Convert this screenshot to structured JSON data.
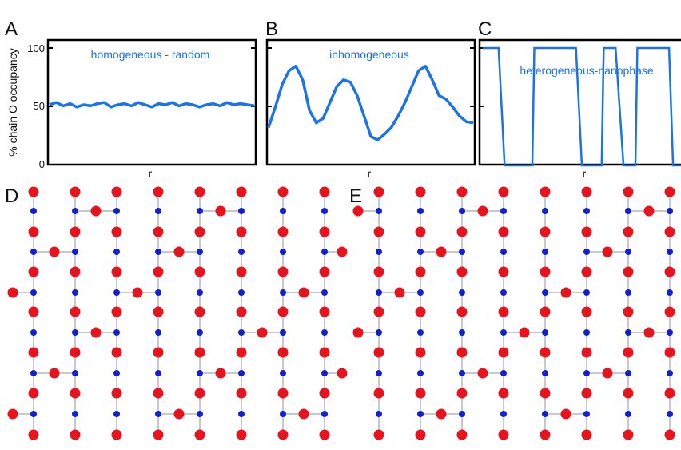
{
  "colors": {
    "curve": "#1a73e8",
    "title": "#1a73e8",
    "o_atom": "#e8141d",
    "cu_atom": "#1420d0",
    "bond": "#c8c8d0",
    "frame": "#000000",
    "watermark": "#eeeeee"
  },
  "panels": {
    "A": {
      "letter": "A",
      "title": "homogeneous - random",
      "xlabel": "r"
    },
    "B": {
      "letter": "B",
      "title": "inhomogeneous",
      "xlabel": "r"
    },
    "C": {
      "letter": "C",
      "title": "heterogeneous-nanophase",
      "xlabel": "r"
    },
    "D": {
      "letter": "D"
    },
    "E": {
      "letter": "E"
    }
  },
  "ylabel": "% chain O occupancy",
  "yticks": [
    "0",
    "50",
    "100"
  ],
  "chart_data": [
    {
      "type": "line",
      "title": "homogeneous - random",
      "xlabel": "r",
      "ylabel": "% chain O occupancy",
      "ylim": [
        0,
        100
      ],
      "x": [
        0,
        1,
        2,
        3,
        4,
        5,
        6,
        7,
        8,
        9,
        10,
        11,
        12,
        13,
        14,
        15,
        16,
        17,
        18,
        19,
        20,
        21,
        22,
        23,
        24,
        25,
        26,
        27,
        28,
        29,
        30
      ],
      "values": [
        50,
        52,
        49,
        51,
        48,
        50,
        49,
        51,
        52,
        48,
        50,
        51,
        49,
        52,
        50,
        48,
        51,
        50,
        52,
        49,
        51,
        50,
        48,
        50,
        51,
        49,
        52,
        50,
        51,
        50,
        49
      ]
    },
    {
      "type": "line",
      "title": "inhomogeneous",
      "xlabel": "r",
      "ylabel": "% chain O occupancy",
      "ylim": [
        0,
        100
      ],
      "x": [
        0,
        1,
        2,
        3,
        4,
        5,
        6,
        7,
        8,
        9,
        10,
        11,
        12,
        13,
        14,
        15,
        16,
        17,
        18,
        19,
        20,
        21,
        22,
        23,
        24,
        25,
        26,
        27,
        28,
        29,
        30
      ],
      "values": [
        30,
        48,
        68,
        80,
        84,
        72,
        45,
        34,
        38,
        52,
        66,
        72,
        70,
        58,
        40,
        22,
        19,
        24,
        30,
        40,
        52,
        66,
        80,
        84,
        72,
        58,
        55,
        48,
        40,
        35,
        34
      ]
    },
    {
      "type": "line",
      "title": "heterogeneous-nanophase",
      "xlabel": "r",
      "ylabel": "% chain O occupancy",
      "ylim": [
        0,
        100
      ],
      "x": [
        0,
        8,
        11,
        25,
        26,
        47,
        50,
        60,
        61,
        67,
        71,
        77,
        78,
        94,
        96,
        100
      ],
      "values": [
        100,
        100,
        0,
        0,
        100,
        100,
        0,
        0,
        100,
        100,
        0,
        0,
        100,
        100,
        0,
        0
      ]
    }
  ],
  "lattices": {
    "D": {
      "rows": [
        "O.O.O.O.O.O.O.O",
        "..o.o.o.o.o.o.oo",
        "O.O.O.O.O.O.O.O",
        ".o.o.oo.o.o.o.o",
        "O.O.O.O.O.O.O.O",
        ".oo.o.o.oo.o.o.o",
        "O.O.O.O.O.O.O.O",
        ".o.o.ooo.o.o.o",
        "O.O.O.O.O.O.O.O",
        ".o.o.o.o.o.o.o",
        "O.O.O.O.O.O.O.O"
      ]
    }
  }
}
